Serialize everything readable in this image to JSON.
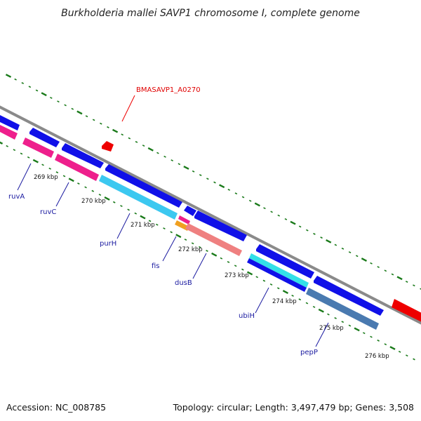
{
  "title": "Burkholderia mallei SAVP1 chromosome I, complete genome",
  "footer": {
    "accession": "Accession: NC_008785",
    "topology": "Topology: circular; Length: 3,497,479 bp; Genes: 3,508"
  },
  "colors": {
    "backbone": "#8a8a8a",
    "tick": "#1a7a1a",
    "cds_forward": "#1010e8",
    "highlight": "#ee0000",
    "magenta": "#ee1f8c",
    "cyan": "#3cc8f0",
    "salmon": "#ef8080",
    "steel_blue": "#4a7ab0",
    "label": "#1a1aa0"
  },
  "highlight_label": "BMASAVP1_A0270",
  "ticks": [
    {
      "label": "269 kbp"
    },
    {
      "label": "270 kbp"
    },
    {
      "label": "271 kbp"
    },
    {
      "label": "272 kbp"
    },
    {
      "label": "273 kbp"
    },
    {
      "label": "274 kbp"
    },
    {
      "label": "275 kbp"
    },
    {
      "label": "276 kbp"
    }
  ],
  "genes": [
    {
      "label": "ruvA",
      "color": "magenta"
    },
    {
      "label": "ruvC",
      "color": "magenta"
    },
    {
      "label": "purH",
      "color": "cyan"
    },
    {
      "label": "fis",
      "color": "salmon"
    },
    {
      "label": "dusB",
      "color": "salmon"
    },
    {
      "label": "ubiH",
      "color": "cyan"
    },
    {
      "label": "pepP",
      "color": "steel_blue"
    }
  ]
}
